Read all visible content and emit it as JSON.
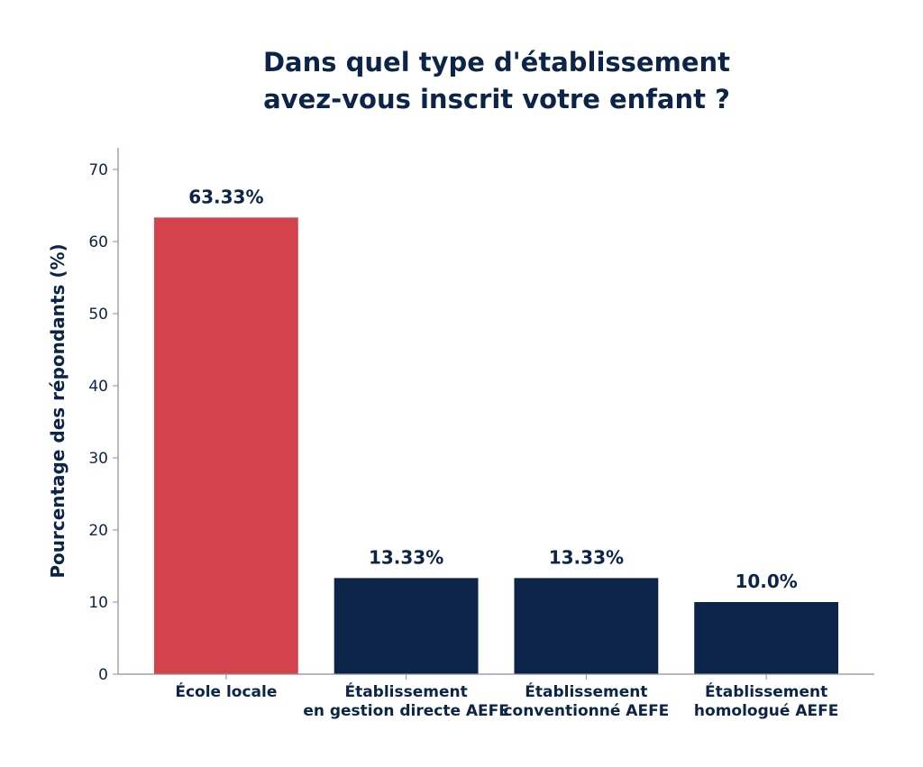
{
  "chart_data": {
    "type": "bar",
    "title": [
      "Dans quel type d'établissement",
      "avez-vous inscrit votre enfant ?"
    ],
    "xlabel": "",
    "ylabel": "Pourcentage des répondants (%)",
    "ylim": [
      0,
      73
    ],
    "yticks": [
      0,
      10,
      20,
      30,
      40,
      50,
      60,
      70
    ],
    "categories": [
      [
        "École locale"
      ],
      [
        "Établissement",
        "en gestion directe AEFE"
      ],
      [
        "Établissement",
        "conventionné AEFE"
      ],
      [
        "Établissement",
        "homologué AEFE"
      ]
    ],
    "values": [
      63.33,
      13.33,
      13.33,
      10.0
    ],
    "value_labels": [
      "63.33%",
      "13.33%",
      "13.33%",
      "10.0%"
    ],
    "colors": [
      "#d4424b",
      "#0b2447",
      "#0b2447",
      "#0b2447"
    ],
    "text_color": "#0b2447",
    "grid": false,
    "legend": "none"
  }
}
